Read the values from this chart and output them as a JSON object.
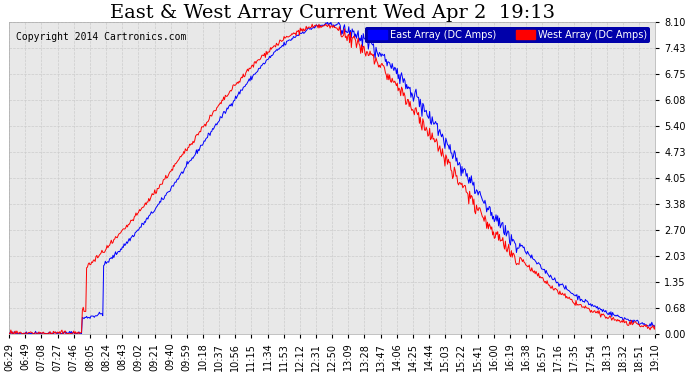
{
  "title": "East & West Array Current Wed Apr 2  19:13",
  "copyright": "Copyright 2014 Cartronics.com",
  "legend_east": "East Array (DC Amps)",
  "legend_west": "West Array (DC Amps)",
  "east_color": "#0000ff",
  "west_color": "#ff0000",
  "background_color": "#ffffff",
  "plot_bg_color": "#e8e8e8",
  "grid_color": "#cccccc",
  "ylim": [
    0.0,
    8.1
  ],
  "yticks": [
    0.0,
    0.68,
    1.35,
    2.03,
    2.7,
    3.38,
    4.05,
    4.73,
    5.4,
    6.08,
    6.75,
    7.43,
    8.1
  ],
  "xtick_labels": [
    "06:29",
    "06:49",
    "07:08",
    "07:27",
    "07:46",
    "08:05",
    "08:24",
    "08:43",
    "09:02",
    "09:21",
    "09:40",
    "09:59",
    "10:18",
    "10:37",
    "10:56",
    "11:15",
    "11:34",
    "11:53",
    "12:12",
    "12:31",
    "12:50",
    "13:09",
    "13:28",
    "13:47",
    "14:06",
    "14:25",
    "14:44",
    "15:03",
    "15:22",
    "15:41",
    "16:00",
    "16:19",
    "16:38",
    "16:57",
    "17:16",
    "17:35",
    "17:54",
    "18:13",
    "18:32",
    "18:51",
    "19:10"
  ],
  "title_fontsize": 14,
  "axis_fontsize": 7,
  "copyright_fontsize": 7
}
